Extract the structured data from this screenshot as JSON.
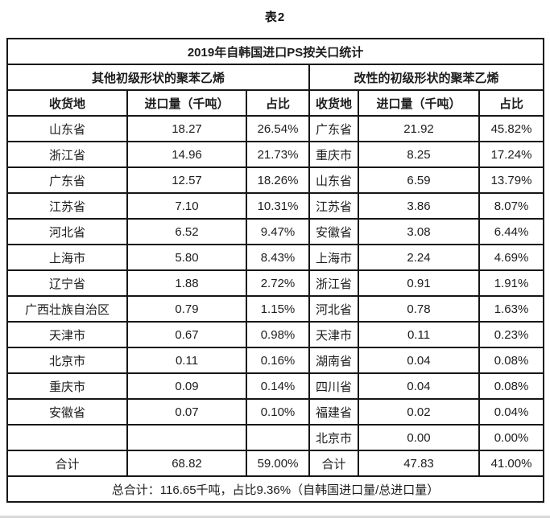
{
  "caption": "表2",
  "colors": {
    "border": "#161616",
    "text": "#1c1c1c",
    "background": "#ffffff",
    "bottom_strip": "#d9d9d9"
  },
  "table": {
    "title": "2019年自韩国进口PS按关口统计",
    "group_left": "其他初级形状的聚苯乙烯",
    "group_right": "改性的初级形状的聚苯乙烯",
    "columns": [
      "收货地",
      "进口量（千吨）",
      "占比"
    ],
    "rows": [
      {
        "left": [
          "山东省",
          "18.27",
          "26.54%"
        ],
        "right": [
          "广东省",
          "21.92",
          "45.82%"
        ]
      },
      {
        "left": [
          "浙江省",
          "14.96",
          "21.73%"
        ],
        "right": [
          "重庆市",
          "8.25",
          "17.24%"
        ]
      },
      {
        "left": [
          "广东省",
          "12.57",
          "18.26%"
        ],
        "right": [
          "山东省",
          "6.59",
          "13.79%"
        ]
      },
      {
        "left": [
          "江苏省",
          "7.10",
          "10.31%"
        ],
        "right": [
          "江苏省",
          "3.86",
          "8.07%"
        ]
      },
      {
        "left": [
          "河北省",
          "6.52",
          "9.47%"
        ],
        "right": [
          "安徽省",
          "3.08",
          "6.44%"
        ]
      },
      {
        "left": [
          "上海市",
          "5.80",
          "8.43%"
        ],
        "right": [
          "上海市",
          "2.24",
          "4.69%"
        ]
      },
      {
        "left": [
          "辽宁省",
          "1.88",
          "2.72%"
        ],
        "right": [
          "浙江省",
          "0.91",
          "1.91%"
        ]
      },
      {
        "left": [
          "广西壮族自治区",
          "0.79",
          "1.15%"
        ],
        "right": [
          "河北省",
          "0.78",
          "1.63%"
        ]
      },
      {
        "left": [
          "天津市",
          "0.67",
          "0.98%"
        ],
        "right": [
          "天津市",
          "0.11",
          "0.23%"
        ]
      },
      {
        "left": [
          "北京市",
          "0.11",
          "0.16%"
        ],
        "right": [
          "湖南省",
          "0.04",
          "0.08%"
        ]
      },
      {
        "left": [
          "重庆市",
          "0.09",
          "0.14%"
        ],
        "right": [
          "四川省",
          "0.04",
          "0.08%"
        ]
      },
      {
        "left": [
          "安徽省",
          "0.07",
          "0.10%"
        ],
        "right": [
          "福建省",
          "0.02",
          "0.04%"
        ]
      },
      {
        "left": [
          "",
          "",
          ""
        ],
        "right": [
          "北京市",
          "0.00",
          "0.00%"
        ]
      }
    ],
    "total_row": {
      "left": [
        "合计",
        "68.82",
        "59.00%"
      ],
      "right": [
        "合计",
        "47.83",
        "41.00%"
      ]
    },
    "footer": "总合计：116.65千吨，占比9.36%（自韩国进口量/总进口量）"
  }
}
